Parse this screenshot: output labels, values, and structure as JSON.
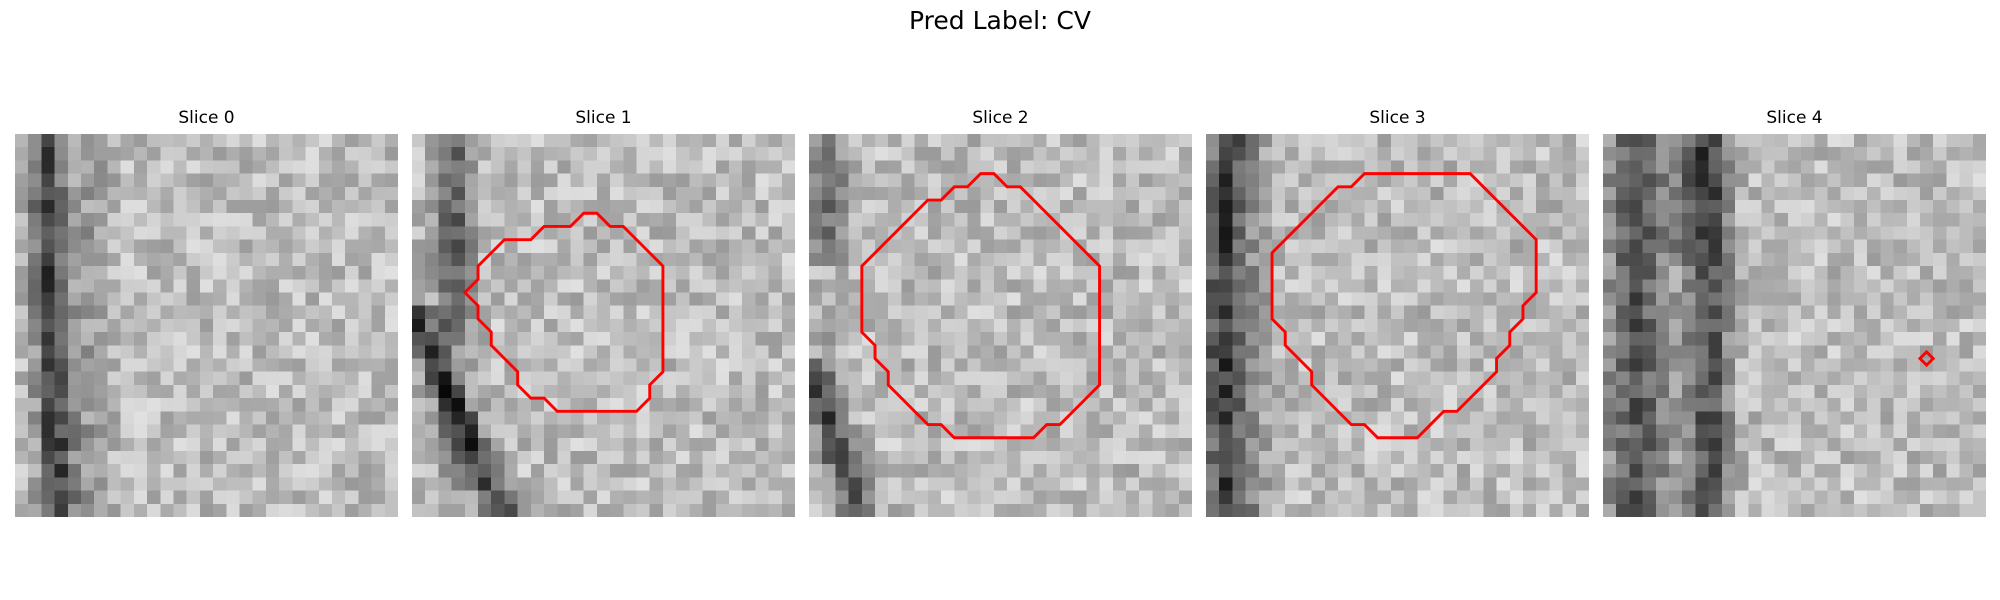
{
  "figure": {
    "title": "Pred Label: CV"
  },
  "panels": [
    {
      "title": "Slice 0",
      "contour": []
    },
    {
      "title": "Slice 1",
      "contour": [
        [
          9,
          8
        ],
        [
          10,
          7
        ],
        [
          11,
          7
        ],
        [
          12,
          7
        ],
        [
          13,
          6
        ],
        [
          14,
          6
        ],
        [
          15,
          7
        ],
        [
          16,
          7
        ],
        [
          17,
          8
        ],
        [
          18,
          9
        ],
        [
          19,
          10
        ],
        [
          19,
          11
        ],
        [
          19,
          12
        ],
        [
          19,
          13
        ],
        [
          19,
          14
        ],
        [
          19,
          15
        ],
        [
          19,
          16
        ],
        [
          19,
          17
        ],
        [
          19,
          18
        ],
        [
          18,
          19
        ],
        [
          18,
          20
        ],
        [
          17,
          21
        ],
        [
          16,
          21
        ],
        [
          15,
          21
        ],
        [
          14,
          21
        ],
        [
          13,
          21
        ],
        [
          12,
          21
        ],
        [
          11,
          21
        ],
        [
          10,
          20
        ],
        [
          9,
          20
        ],
        [
          8,
          19
        ],
        [
          8,
          18
        ],
        [
          7,
          17
        ],
        [
          6,
          16
        ],
        [
          6,
          15
        ],
        [
          5,
          14
        ],
        [
          5,
          13
        ],
        [
          4,
          12
        ],
        [
          5,
          11
        ],
        [
          5,
          10
        ],
        [
          6,
          9
        ],
        [
          7,
          8
        ],
        [
          8,
          8
        ]
      ]
    },
    {
      "title": "Slice 2",
      "contour": [
        [
          9,
          5
        ],
        [
          10,
          5
        ],
        [
          11,
          4
        ],
        [
          12,
          4
        ],
        [
          13,
          3
        ],
        [
          14,
          3
        ],
        [
          15,
          4
        ],
        [
          16,
          4
        ],
        [
          17,
          5
        ],
        [
          18,
          6
        ],
        [
          19,
          7
        ],
        [
          20,
          8
        ],
        [
          21,
          9
        ],
        [
          22,
          10
        ],
        [
          22,
          11
        ],
        [
          22,
          12
        ],
        [
          22,
          13
        ],
        [
          22,
          14
        ],
        [
          22,
          15
        ],
        [
          22,
          16
        ],
        [
          22,
          17
        ],
        [
          22,
          18
        ],
        [
          22,
          19
        ],
        [
          21,
          20
        ],
        [
          20,
          21
        ],
        [
          19,
          22
        ],
        [
          18,
          22
        ],
        [
          17,
          23
        ],
        [
          16,
          23
        ],
        [
          15,
          23
        ],
        [
          14,
          23
        ],
        [
          13,
          23
        ],
        [
          12,
          23
        ],
        [
          11,
          23
        ],
        [
          10,
          22
        ],
        [
          9,
          22
        ],
        [
          8,
          21
        ],
        [
          7,
          20
        ],
        [
          6,
          19
        ],
        [
          6,
          18
        ],
        [
          5,
          17
        ],
        [
          5,
          16
        ],
        [
          4,
          15
        ],
        [
          4,
          14
        ],
        [
          4,
          13
        ],
        [
          4,
          12
        ],
        [
          4,
          11
        ],
        [
          4,
          10
        ],
        [
          5,
          9
        ],
        [
          6,
          8
        ],
        [
          7,
          7
        ],
        [
          8,
          6
        ]
      ]
    },
    {
      "title": "Slice 3",
      "contour": [
        [
          14,
          3
        ],
        [
          15,
          3
        ],
        [
          16,
          3
        ],
        [
          17,
          3
        ],
        [
          18,
          3
        ],
        [
          19,
          3
        ],
        [
          20,
          3
        ],
        [
          21,
          4
        ],
        [
          22,
          5
        ],
        [
          23,
          6
        ],
        [
          24,
          7
        ],
        [
          25,
          8
        ],
        [
          25,
          9
        ],
        [
          25,
          10
        ],
        [
          25,
          11
        ],
        [
          25,
          12
        ],
        [
          24,
          13
        ],
        [
          24,
          14
        ],
        [
          23,
          15
        ],
        [
          23,
          16
        ],
        [
          22,
          17
        ],
        [
          22,
          18
        ],
        [
          21,
          19
        ],
        [
          20,
          20
        ],
        [
          19,
          21
        ],
        [
          18,
          21
        ],
        [
          17,
          22
        ],
        [
          16,
          23
        ],
        [
          15,
          23
        ],
        [
          14,
          23
        ],
        [
          13,
          23
        ],
        [
          12,
          22
        ],
        [
          11,
          22
        ],
        [
          10,
          21
        ],
        [
          9,
          20
        ],
        [
          8,
          19
        ],
        [
          8,
          18
        ],
        [
          7,
          17
        ],
        [
          6,
          16
        ],
        [
          6,
          15
        ],
        [
          5,
          14
        ],
        [
          5,
          13
        ],
        [
          5,
          12
        ],
        [
          5,
          11
        ],
        [
          5,
          10
        ],
        [
          5,
          9
        ],
        [
          6,
          8
        ],
        [
          7,
          7
        ],
        [
          8,
          6
        ],
        [
          9,
          5
        ],
        [
          10,
          4
        ],
        [
          11,
          4
        ],
        [
          12,
          3
        ],
        [
          13,
          3
        ]
      ]
    },
    {
      "title": "Slice 4",
      "contour": [
        [
          24.5,
          16.5
        ],
        [
          25,
          17
        ],
        [
          24.5,
          17.5
        ],
        [
          24,
          17
        ]
      ]
    }
  ],
  "style": {
    "contour_color": "#ff0000"
  }
}
